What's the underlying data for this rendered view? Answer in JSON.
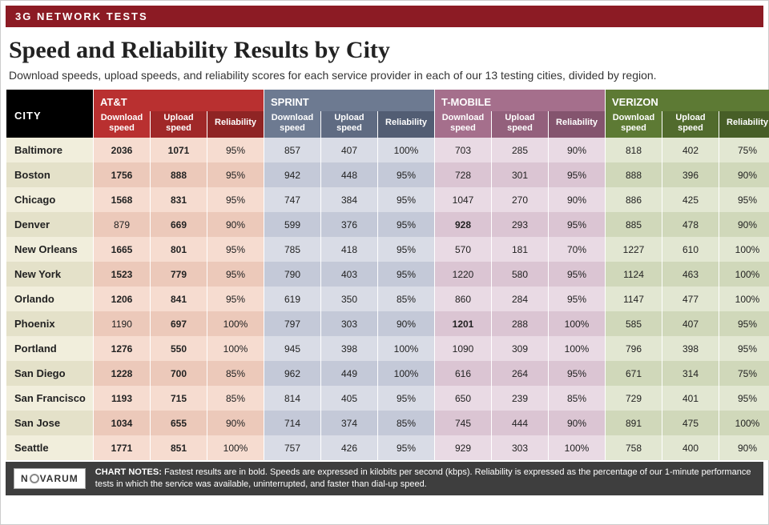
{
  "banner": "3G NETWORK TESTS",
  "title": "Speed and Reliability Results by City",
  "subtitle": "Download speeds, upload speeds, and reliability scores for each service provider in each of our 13 testing cities, divided by region.",
  "cityHeader": "CITY",
  "carriers": [
    {
      "name": "AT&T",
      "hdrClasses": [
        "att-bg",
        "att-bg2",
        "att-bg3"
      ],
      "cellBg": {
        "even": "#f6dcd0",
        "odd": "#ecc9ba"
      }
    },
    {
      "name": "SPRINT",
      "hdrClasses": [
        "spr-bg",
        "spr-bg2",
        "spr-bg3"
      ],
      "cellBg": {
        "even": "#d9dce6",
        "odd": "#c4c9d8"
      }
    },
    {
      "name": "T-MOBILE",
      "hdrClasses": [
        "tmo-bg",
        "tmo-bg2",
        "tmo-bg3"
      ],
      "cellBg": {
        "even": "#e9dae4",
        "odd": "#dbc5d3"
      }
    },
    {
      "name": "VERIZON",
      "hdrClasses": [
        "vz-bg",
        "vz-bg2",
        "vz-bg3"
      ],
      "cellBg": {
        "even": "#e2e7d2",
        "odd": "#d0d8ba"
      }
    }
  ],
  "subHeaders": [
    "Download<br>speed",
    "Upload<br>speed",
    "Reliability"
  ],
  "cityCellBg": {
    "even": "#f1eedc",
    "odd": "#e4e1c9"
  },
  "rows": [
    {
      "city": "Baltimore",
      "vals": [
        [
          "2036",
          1
        ],
        [
          "1071",
          1
        ],
        [
          "95%",
          0
        ],
        [
          "857",
          0
        ],
        [
          "407",
          0
        ],
        [
          "100%",
          0
        ],
        [
          "703",
          0
        ],
        [
          "285",
          0
        ],
        [
          "90%",
          0
        ],
        [
          "818",
          0
        ],
        [
          "402",
          0
        ],
        [
          "75%",
          0
        ]
      ]
    },
    {
      "city": "Boston",
      "vals": [
        [
          "1756",
          1
        ],
        [
          "888",
          1
        ],
        [
          "95%",
          0
        ],
        [
          "942",
          0
        ],
        [
          "448",
          0
        ],
        [
          "95%",
          0
        ],
        [
          "728",
          0
        ],
        [
          "301",
          0
        ],
        [
          "95%",
          0
        ],
        [
          "888",
          0
        ],
        [
          "396",
          0
        ],
        [
          "90%",
          0
        ]
      ]
    },
    {
      "city": "Chicago",
      "vals": [
        [
          "1568",
          1
        ],
        [
          "831",
          1
        ],
        [
          "95%",
          0
        ],
        [
          "747",
          0
        ],
        [
          "384",
          0
        ],
        [
          "95%",
          0
        ],
        [
          "1047",
          0
        ],
        [
          "270",
          0
        ],
        [
          "90%",
          0
        ],
        [
          "886",
          0
        ],
        [
          "425",
          0
        ],
        [
          "95%",
          0
        ]
      ]
    },
    {
      "city": "Denver",
      "vals": [
        [
          "879",
          0
        ],
        [
          "669",
          1
        ],
        [
          "90%",
          0
        ],
        [
          "599",
          0
        ],
        [
          "376",
          0
        ],
        [
          "95%",
          0
        ],
        [
          "928",
          1
        ],
        [
          "293",
          0
        ],
        [
          "95%",
          0
        ],
        [
          "885",
          0
        ],
        [
          "478",
          0
        ],
        [
          "90%",
          0
        ]
      ]
    },
    {
      "city": "New Orleans",
      "vals": [
        [
          "1665",
          1
        ],
        [
          "801",
          1
        ],
        [
          "95%",
          0
        ],
        [
          "785",
          0
        ],
        [
          "418",
          0
        ],
        [
          "95%",
          0
        ],
        [
          "570",
          0
        ],
        [
          "181",
          0
        ],
        [
          "70%",
          0
        ],
        [
          "1227",
          0
        ],
        [
          "610",
          0
        ],
        [
          "100%",
          0
        ]
      ]
    },
    {
      "city": "New York",
      "vals": [
        [
          "1523",
          1
        ],
        [
          "779",
          1
        ],
        [
          "95%",
          0
        ],
        [
          "790",
          0
        ],
        [
          "403",
          0
        ],
        [
          "95%",
          0
        ],
        [
          "1220",
          0
        ],
        [
          "580",
          0
        ],
        [
          "95%",
          0
        ],
        [
          "1124",
          0
        ],
        [
          "463",
          0
        ],
        [
          "100%",
          0
        ]
      ]
    },
    {
      "city": "Orlando",
      "vals": [
        [
          "1206",
          1
        ],
        [
          "841",
          1
        ],
        [
          "95%",
          0
        ],
        [
          "619",
          0
        ],
        [
          "350",
          0
        ],
        [
          "85%",
          0
        ],
        [
          "860",
          0
        ],
        [
          "284",
          0
        ],
        [
          "95%",
          0
        ],
        [
          "1147",
          0
        ],
        [
          "477",
          0
        ],
        [
          "100%",
          0
        ]
      ]
    },
    {
      "city": "Phoenix",
      "vals": [
        [
          "1190",
          0
        ],
        [
          "697",
          1
        ],
        [
          "100%",
          0
        ],
        [
          "797",
          0
        ],
        [
          "303",
          0
        ],
        [
          "90%",
          0
        ],
        [
          "1201",
          1
        ],
        [
          "288",
          0
        ],
        [
          "100%",
          0
        ],
        [
          "585",
          0
        ],
        [
          "407",
          0
        ],
        [
          "95%",
          0
        ]
      ]
    },
    {
      "city": "Portland",
      "vals": [
        [
          "1276",
          1
        ],
        [
          "550",
          1
        ],
        [
          "100%",
          0
        ],
        [
          "945",
          0
        ],
        [
          "398",
          0
        ],
        [
          "100%",
          0
        ],
        [
          "1090",
          0
        ],
        [
          "309",
          0
        ],
        [
          "100%",
          0
        ],
        [
          "796",
          0
        ],
        [
          "398",
          0
        ],
        [
          "95%",
          0
        ]
      ]
    },
    {
      "city": "San Diego",
      "vals": [
        [
          "1228",
          1
        ],
        [
          "700",
          1
        ],
        [
          "85%",
          0
        ],
        [
          "962",
          0
        ],
        [
          "449",
          0
        ],
        [
          "100%",
          0
        ],
        [
          "616",
          0
        ],
        [
          "264",
          0
        ],
        [
          "95%",
          0
        ],
        [
          "671",
          0
        ],
        [
          "314",
          0
        ],
        [
          "75%",
          0
        ]
      ]
    },
    {
      "city": "San Francisco",
      "vals": [
        [
          "1193",
          1
        ],
        [
          "715",
          1
        ],
        [
          "85%",
          0
        ],
        [
          "814",
          0
        ],
        [
          "405",
          0
        ],
        [
          "95%",
          0
        ],
        [
          "650",
          0
        ],
        [
          "239",
          0
        ],
        [
          "85%",
          0
        ],
        [
          "729",
          0
        ],
        [
          "401",
          0
        ],
        [
          "95%",
          0
        ]
      ]
    },
    {
      "city": "San Jose",
      "vals": [
        [
          "1034",
          1
        ],
        [
          "655",
          1
        ],
        [
          "90%",
          0
        ],
        [
          "714",
          0
        ],
        [
          "374",
          0
        ],
        [
          "85%",
          0
        ],
        [
          "745",
          0
        ],
        [
          "444",
          0
        ],
        [
          "90%",
          0
        ],
        [
          "891",
          0
        ],
        [
          "475",
          0
        ],
        [
          "100%",
          0
        ]
      ]
    },
    {
      "city": "Seattle",
      "vals": [
        [
          "1771",
          1
        ],
        [
          "851",
          1
        ],
        [
          "100%",
          0
        ],
        [
          "757",
          0
        ],
        [
          "426",
          0
        ],
        [
          "95%",
          0
        ],
        [
          "929",
          0
        ],
        [
          "303",
          0
        ],
        [
          "100%",
          0
        ],
        [
          "758",
          0
        ],
        [
          "400",
          0
        ],
        [
          "90%",
          0
        ]
      ]
    }
  ],
  "footer": {
    "logo": "N   VARUM",
    "notesLabel": "CHART NOTES:",
    "notes": "Fastest results are in bold. Speeds are expressed in kilobits per second (kbps). Reliability is expressed as the percentage of our 1-minute performance tests in which the service was available, uninterrupted, and faster than dial-up speed."
  }
}
